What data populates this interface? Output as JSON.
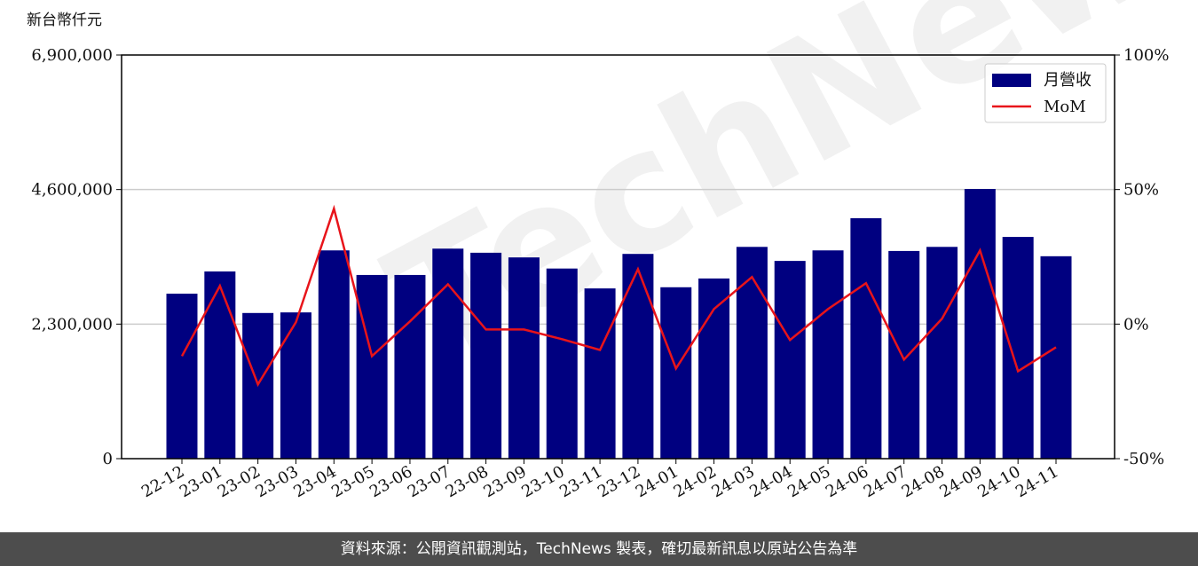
{
  "chart_data": {
    "type": "bar_line",
    "y_label": "新台幣仟元",
    "watermark": "TechNews",
    "footer": "資料來源：公開資訊觀測站，TechNews 製表，確切最新訊息以原站公告為準",
    "categories": [
      "22-12",
      "23-01",
      "23-02",
      "23-03",
      "23-04",
      "23-05",
      "23-06",
      "23-07",
      "23-08",
      "23-09",
      "23-10",
      "23-11",
      "23-12",
      "24-01",
      "24-02",
      "24-03",
      "24-04",
      "24-05",
      "24-06",
      "24-07",
      "24-08",
      "24-09",
      "24-10",
      "24-11"
    ],
    "series": [
      {
        "name": "月營收",
        "type": "bar",
        "color": "#000080",
        "values": [
          2820000,
          3200000,
          2490000,
          2500000,
          3560000,
          3140000,
          3140000,
          3590000,
          3520000,
          3440000,
          3250000,
          2910000,
          3500000,
          2930000,
          3080000,
          3620000,
          3380000,
          3560000,
          4110000,
          3550000,
          3620000,
          4610000,
          3790000,
          3460000
        ]
      },
      {
        "name": "MoM",
        "type": "line",
        "axis": "y2",
        "color": "#e8141a",
        "values": [
          -11.9,
          14.2,
          -22.4,
          0.7,
          42.9,
          -11.9,
          1,
          14.8,
          -2,
          -2,
          -5.6,
          -9.6,
          20.4,
          -16.5,
          5.6,
          17.5,
          -5.9,
          5.6,
          15.2,
          -13.2,
          2,
          27.4,
          -17.5,
          -8.6
        ]
      }
    ],
    "ylim": [
      0,
      6900000
    ],
    "yticks": [
      0,
      {
        "value": 2300000,
        "label": "2,300,000"
      },
      {
        "value": 4600000,
        "label": "4,600,000"
      },
      {
        "value": 6900000,
        "label": "6,900,000"
      }
    ],
    "y2lim": [
      -50,
      100
    ],
    "y2ticks": [
      {
        "value": -50,
        "label": "-50%"
      },
      {
        "value": 0,
        "label": "0%"
      },
      {
        "value": 50,
        "label": "50%"
      },
      {
        "value": 100,
        "label": "100%"
      }
    ],
    "grid": true,
    "legend": "upper right"
  }
}
